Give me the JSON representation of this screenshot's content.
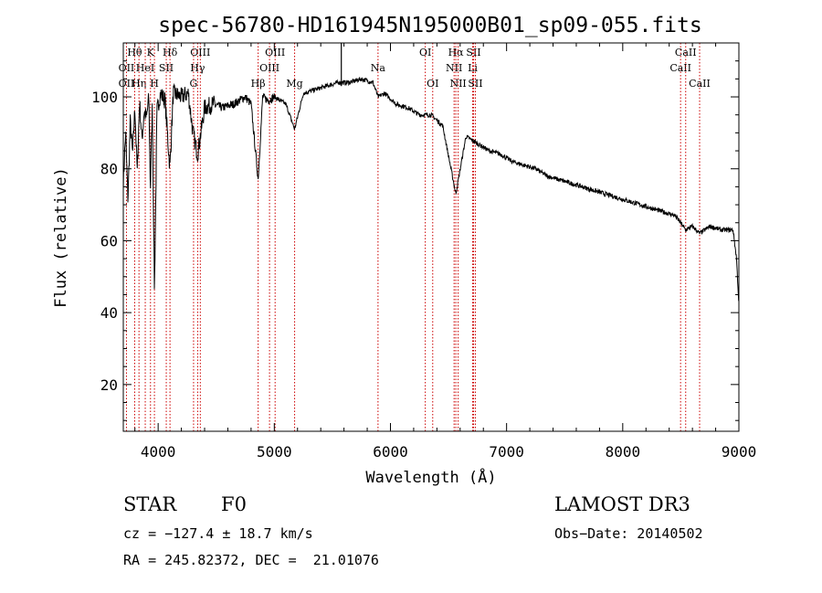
{
  "chart_data": {
    "type": "line",
    "title": "spec-56780-HD161945N195000B01_sp09-055.fits",
    "xlabel": "Wavelength (Å)",
    "ylabel": "Flux (relative)",
    "xlim": [
      3700,
      9000
    ],
    "ylim": [
      7,
      115
    ],
    "xticks": [
      4000,
      5000,
      6000,
      7000,
      8000,
      9000
    ],
    "yticks": [
      20,
      40,
      60,
      80,
      100
    ],
    "series": [
      {
        "name": "spectrum",
        "x": [
          3700,
          3720,
          3740,
          3760,
          3780,
          3800,
          3820,
          3840,
          3860,
          3880,
          3900,
          3920,
          3933,
          3950,
          3968,
          3990,
          4020,
          4060,
          4101,
          4130,
          4200,
          4260,
          4300,
          4340,
          4400,
          4480,
          4550,
          4650,
          4750,
          4800,
          4861,
          4900,
          4950,
          5000,
          5100,
          5175,
          5250,
          5350,
          5450,
          5550,
          5650,
          5750,
          5850,
          5893,
          5950,
          6050,
          6150,
          6250,
          6350,
          6450,
          6563,
          6650,
          6750,
          6850,
          6950,
          7050,
          7150,
          7250,
          7350,
          7450,
          7550,
          7650,
          7750,
          7850,
          7950,
          8050,
          8150,
          8250,
          8350,
          8450,
          8498,
          8542,
          8600,
          8662,
          8750,
          8850,
          8950,
          8980,
          9000
        ],
        "y": [
          76,
          90,
          71,
          93,
          84,
          97,
          79,
          99,
          88,
          96,
          94,
          100,
          74,
          98,
          45,
          96,
          101,
          99,
          80,
          101,
          100,
          101,
          90,
          84,
          97,
          98,
          97,
          98,
          100,
          98,
          77,
          100,
          99,
          100,
          98,
          91,
          101,
          102,
          103,
          104,
          104,
          105,
          104,
          100,
          101,
          98,
          97,
          95,
          95,
          92,
          73,
          89,
          87,
          85,
          84,
          82,
          81,
          80,
          78,
          77,
          76,
          75,
          74,
          73,
          72,
          71,
          70,
          69,
          68,
          67,
          65,
          63,
          64,
          62,
          64,
          63,
          63,
          55,
          42
        ]
      }
    ],
    "lines": [
      {
        "name": "Hθ",
        "wavelength": 3798,
        "row": 0
      },
      {
        "name": "OII",
        "wavelength": 3727,
        "row": 1
      },
      {
        "name": "OII",
        "wavelength": 3727,
        "row": 2
      },
      {
        "name": "Hη",
        "wavelength": 3835,
        "row": 2
      },
      {
        "name": "HeI",
        "wavelength": 3889,
        "row": 1
      },
      {
        "name": "K",
        "wavelength": 3934,
        "row": 0
      },
      {
        "name": "SII",
        "wavelength": 4070,
        "row": 1
      },
      {
        "name": "H",
        "wavelength": 3968,
        "row": 2
      },
      {
        "name": "Hδ",
        "wavelength": 4102,
        "row": 0
      },
      {
        "name": "OIII",
        "wavelength": 4363,
        "row": 0
      },
      {
        "name": "Hγ",
        "wavelength": 4340,
        "row": 1
      },
      {
        "name": "G",
        "wavelength": 4305,
        "row": 2
      },
      {
        "name": "Hβ",
        "wavelength": 4861,
        "row": 2
      },
      {
        "name": "OIII",
        "wavelength": 5007,
        "row": 0
      },
      {
        "name": "OIII",
        "wavelength": 4959,
        "row": 1
      },
      {
        "name": "Mg",
        "wavelength": 5175,
        "row": 2
      },
      {
        "name": "Na",
        "wavelength": 5893,
        "row": 1
      },
      {
        "name": "OI",
        "wavelength": 6300,
        "row": 0
      },
      {
        "name": "OI",
        "wavelength": 6364,
        "row": 2
      },
      {
        "name": "Hα",
        "wavelength": 6563,
        "row": 0
      },
      {
        "name": "NII",
        "wavelength": 6548,
        "row": 1
      },
      {
        "name": "NII",
        "wavelength": 6583,
        "row": 2
      },
      {
        "name": "SII",
        "wavelength": 6716,
        "row": 0
      },
      {
        "name": "Li",
        "wavelength": 6708,
        "row": 1
      },
      {
        "name": "SII",
        "wavelength": 6731,
        "row": 2
      },
      {
        "name": "CaII",
        "wavelength": 8498,
        "row": 1
      },
      {
        "name": "CaII",
        "wavelength": 8542,
        "row": 0
      },
      {
        "name": "CaII",
        "wavelength": 8662,
        "row": 2
      }
    ],
    "colors": {
      "spectrum": "#000000",
      "line_marker": "#cc0000"
    }
  },
  "info": {
    "class": "STAR",
    "subclass": "F0",
    "cz": "cz = −127.4 ± 18.7 km/s",
    "radec": "RA = 245.82372, DEC =  21.01076",
    "survey": "LAMOST DR3",
    "obsdate": "Obs−Date: 20140502"
  }
}
